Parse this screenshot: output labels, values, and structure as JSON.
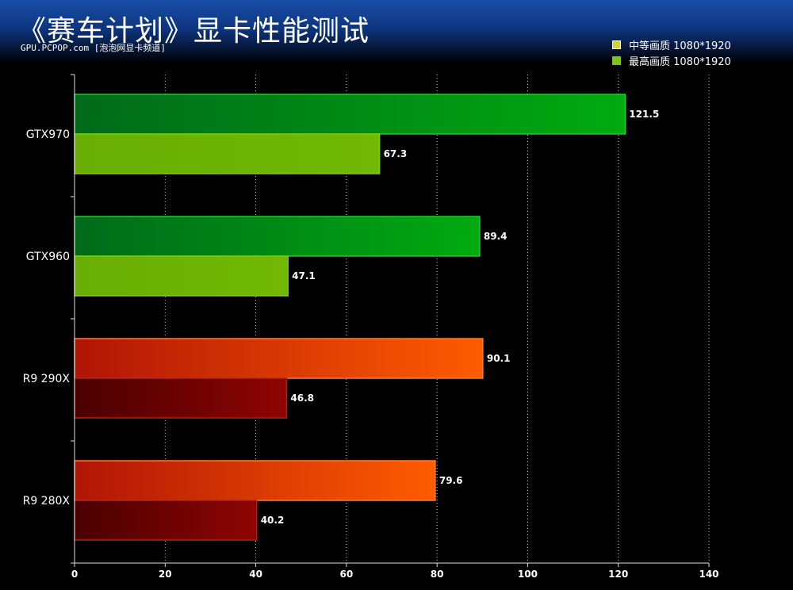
{
  "header": {
    "title": "《赛车计划》显卡性能测试",
    "source": "GPU.PCPOP.com [泡泡网显卡频道]"
  },
  "chart_data": {
    "type": "bar",
    "orientation": "horizontal",
    "title": "《赛车计划》显卡性能测试",
    "categories": [
      "GTX970",
      "GTX960",
      "R9  290X",
      "R9  280X"
    ],
    "series": [
      {
        "name": "中等画质  1080*1920",
        "values": [
          121.5,
          89.4,
          90.1,
          79.6
        ]
      },
      {
        "name": "最高画质  1080*1920",
        "values": [
          67.3,
          47.1,
          46.8,
          40.2
        ]
      }
    ],
    "xlim": [
      0,
      140
    ],
    "xticks": [
      0,
      20,
      40,
      60,
      80,
      100,
      120,
      140
    ],
    "grid": "vertical-dotted",
    "legend_position": "top-right",
    "colors": {
      "nvidia_medium": [
        "#006f1a",
        "#00a814"
      ],
      "nvidia_high": "#6db204",
      "amd_medium": [
        "#b01506",
        "#ff5a00"
      ],
      "amd_high": [
        "#4a0000",
        "#8b0404"
      ]
    }
  }
}
